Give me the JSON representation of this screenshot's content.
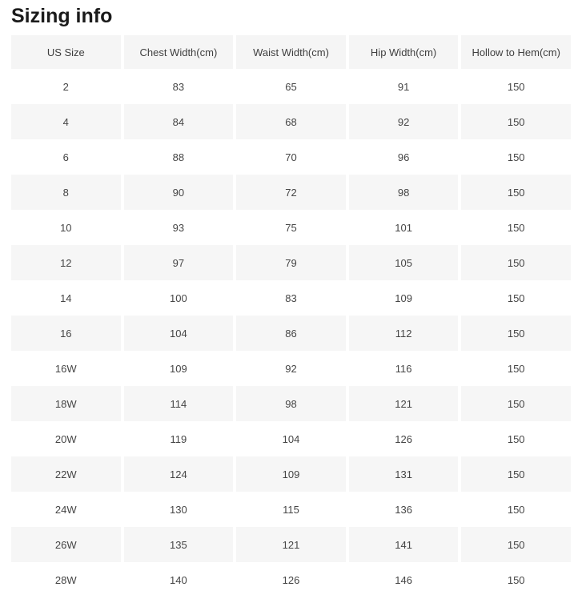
{
  "page": {
    "title": "Sizing info"
  },
  "colors": {
    "header_bg": "#f5f5f5",
    "row_alt_bg": "#f6f6f6",
    "text": "#454545",
    "title_text": "#1b1b1b",
    "page_bg": "#ffffff"
  },
  "table": {
    "columns": [
      "US Size",
      "Chest Width(cm)",
      "Waist Width(cm)",
      "Hip Width(cm)",
      "Hollow to Hem(cm)"
    ],
    "rows": [
      [
        "2",
        "83",
        "65",
        "91",
        "150"
      ],
      [
        "4",
        "84",
        "68",
        "92",
        "150"
      ],
      [
        "6",
        "88",
        "70",
        "96",
        "150"
      ],
      [
        "8",
        "90",
        "72",
        "98",
        "150"
      ],
      [
        "10",
        "93",
        "75",
        "101",
        "150"
      ],
      [
        "12",
        "97",
        "79",
        "105",
        "150"
      ],
      [
        "14",
        "100",
        "83",
        "109",
        "150"
      ],
      [
        "16",
        "104",
        "86",
        "112",
        "150"
      ],
      [
        "16W",
        "109",
        "92",
        "116",
        "150"
      ],
      [
        "18W",
        "114",
        "98",
        "121",
        "150"
      ],
      [
        "20W",
        "119",
        "104",
        "126",
        "150"
      ],
      [
        "22W",
        "124",
        "109",
        "131",
        "150"
      ],
      [
        "24W",
        "130",
        "115",
        "136",
        "150"
      ],
      [
        "26W",
        "135",
        "121",
        "141",
        "150"
      ],
      [
        "28W",
        "140",
        "126",
        "146",
        "150"
      ]
    ]
  }
}
